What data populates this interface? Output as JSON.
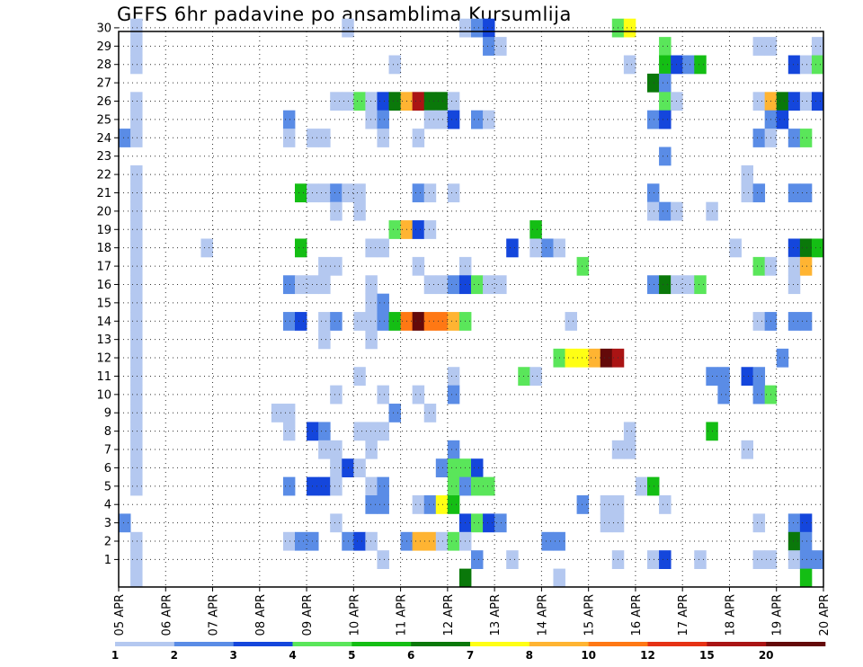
{
  "chart_data": {
    "type": "heatmap",
    "title": "GEFS 6hr padavine po ansamblima Kursumlija",
    "xlabel": "",
    "ylabel": "",
    "x_ticks": [
      "05 APR",
      "06 APR",
      "07 APR",
      "08 APR",
      "09 APR",
      "10 APR",
      "11 APR",
      "12 APR",
      "13 APR",
      "14 APR",
      "15 APR",
      "16 APR",
      "17 APR",
      "18 APR",
      "19 APR",
      "20 APR"
    ],
    "y_ticks": [
      "1",
      "2",
      "3",
      "4",
      "5",
      "6",
      "7",
      "8",
      "9",
      "10",
      "11",
      "12",
      "13",
      "14",
      "15",
      "16",
      "17",
      "18",
      "19",
      "20",
      "21",
      "22",
      "23",
      "24",
      "25",
      "26",
      "27",
      "28",
      "29",
      "30"
    ],
    "xlim": [
      0,
      60
    ],
    "ylim": [
      0,
      30
    ],
    "grid": true,
    "colorbar": {
      "labels": [
        "1",
        "2",
        "3",
        "4",
        "5",
        "6",
        "7",
        "8",
        "10",
        "12",
        "15",
        "20"
      ],
      "colors": [
        "#b4c8f0",
        "#5a8ce6",
        "#1446dc",
        "#5ae65a",
        "#14be14",
        "#0a780a",
        "#ffff14",
        "#ffb432",
        "#ff7814",
        "#e63214",
        "#aa1414",
        "#640a0a"
      ]
    },
    "cells": [
      [
        30,
        1,
        1
      ],
      [
        30,
        19,
        1
      ],
      [
        30,
        29,
        1
      ],
      [
        30,
        30,
        2
      ],
      [
        30,
        31,
        3
      ],
      [
        30,
        42,
        4
      ],
      [
        30,
        43,
        7
      ],
      [
        29,
        1,
        1
      ],
      [
        29,
        31,
        2
      ],
      [
        29,
        32,
        1
      ],
      [
        29,
        46,
        4
      ],
      [
        29,
        54,
        1
      ],
      [
        29,
        55,
        1
      ],
      [
        29,
        59,
        1
      ],
      [
        28,
        1,
        1
      ],
      [
        28,
        23,
        1
      ],
      [
        28,
        43,
        1
      ],
      [
        28,
        46,
        5
      ],
      [
        28,
        47,
        3
      ],
      [
        28,
        48,
        2
      ],
      [
        28,
        49,
        5
      ],
      [
        28,
        57,
        3
      ],
      [
        28,
        58,
        1
      ],
      [
        28,
        59,
        4
      ],
      [
        27,
        45,
        6
      ],
      [
        27,
        46,
        2
      ],
      [
        26,
        1,
        1
      ],
      [
        26,
        18,
        1
      ],
      [
        26,
        19,
        1
      ],
      [
        26,
        20,
        4
      ],
      [
        26,
        21,
        1
      ],
      [
        26,
        22,
        3
      ],
      [
        26,
        23,
        6
      ],
      [
        26,
        24,
        8
      ],
      [
        26,
        25,
        11
      ],
      [
        26,
        26,
        6
      ],
      [
        26,
        27,
        6
      ],
      [
        26,
        28,
        1
      ],
      [
        26,
        46,
        4
      ],
      [
        26,
        47,
        1
      ],
      [
        26,
        54,
        1
      ],
      [
        26,
        55,
        8
      ],
      [
        26,
        56,
        6
      ],
      [
        26,
        57,
        3
      ],
      [
        26,
        58,
        1
      ],
      [
        26,
        59,
        3
      ],
      [
        25,
        1,
        1
      ],
      [
        25,
        14,
        2
      ],
      [
        25,
        21,
        1
      ],
      [
        25,
        22,
        2
      ],
      [
        25,
        26,
        1
      ],
      [
        25,
        27,
        1
      ],
      [
        25,
        28,
        3
      ],
      [
        25,
        30,
        2
      ],
      [
        25,
        31,
        1
      ],
      [
        25,
        45,
        2
      ],
      [
        25,
        46,
        3
      ],
      [
        25,
        55,
        2
      ],
      [
        25,
        56,
        3
      ],
      [
        24,
        0,
        2
      ],
      [
        24,
        1,
        1
      ],
      [
        24,
        14,
        1
      ],
      [
        24,
        16,
        1
      ],
      [
        24,
        17,
        1
      ],
      [
        24,
        22,
        1
      ],
      [
        24,
        25,
        1
      ],
      [
        24,
        54,
        2
      ],
      [
        24,
        55,
        1
      ],
      [
        24,
        57,
        2
      ],
      [
        24,
        58,
        4
      ],
      [
        23,
        46,
        2
      ],
      [
        22,
        1,
        1
      ],
      [
        22,
        53,
        1
      ],
      [
        21,
        1,
        1
      ],
      [
        21,
        15,
        5
      ],
      [
        21,
        16,
        1
      ],
      [
        21,
        17,
        1
      ],
      [
        21,
        18,
        2
      ],
      [
        21,
        19,
        1
      ],
      [
        21,
        20,
        1
      ],
      [
        21,
        25,
        2
      ],
      [
        21,
        26,
        1
      ],
      [
        21,
        28,
        1
      ],
      [
        21,
        45,
        2
      ],
      [
        21,
        53,
        1
      ],
      [
        21,
        54,
        2
      ],
      [
        21,
        57,
        2
      ],
      [
        21,
        58,
        2
      ],
      [
        20,
        1,
        1
      ],
      [
        20,
        18,
        1
      ],
      [
        20,
        20,
        1
      ],
      [
        20,
        45,
        1
      ],
      [
        20,
        46,
        2
      ],
      [
        20,
        47,
        1
      ],
      [
        20,
        50,
        1
      ],
      [
        19,
        1,
        1
      ],
      [
        19,
        23,
        4
      ],
      [
        19,
        24,
        8
      ],
      [
        19,
        25,
        3
      ],
      [
        19,
        26,
        1
      ],
      [
        19,
        35,
        5
      ],
      [
        18,
        1,
        1
      ],
      [
        18,
        7,
        1
      ],
      [
        18,
        15,
        5
      ],
      [
        18,
        21,
        1
      ],
      [
        18,
        22,
        1
      ],
      [
        18,
        33,
        3
      ],
      [
        18,
        35,
        1
      ],
      [
        18,
        36,
        2
      ],
      [
        18,
        37,
        1
      ],
      [
        18,
        52,
        1
      ],
      [
        18,
        57,
        3
      ],
      [
        18,
        58,
        6
      ],
      [
        18,
        59,
        5
      ],
      [
        17,
        1,
        1
      ],
      [
        17,
        17,
        1
      ],
      [
        17,
        18,
        1
      ],
      [
        17,
        25,
        1
      ],
      [
        17,
        29,
        1
      ],
      [
        17,
        39,
        4
      ],
      [
        17,
        54,
        4
      ],
      [
        17,
        55,
        1
      ],
      [
        17,
        57,
        1
      ],
      [
        17,
        58,
        8
      ],
      [
        16,
        1,
        1
      ],
      [
        16,
        14,
        2
      ],
      [
        16,
        15,
        1
      ],
      [
        16,
        16,
        1
      ],
      [
        16,
        17,
        1
      ],
      [
        16,
        21,
        1
      ],
      [
        16,
        26,
        1
      ],
      [
        16,
        27,
        1
      ],
      [
        16,
        28,
        2
      ],
      [
        16,
        29,
        3
      ],
      [
        16,
        30,
        4
      ],
      [
        16,
        31,
        1
      ],
      [
        16,
        32,
        1
      ],
      [
        16,
        45,
        2
      ],
      [
        16,
        46,
        6
      ],
      [
        16,
        47,
        1
      ],
      [
        16,
        48,
        1
      ],
      [
        16,
        49,
        4
      ],
      [
        16,
        57,
        1
      ],
      [
        15,
        1,
        1
      ],
      [
        15,
        21,
        1
      ],
      [
        15,
        22,
        2
      ],
      [
        14,
        1,
        1
      ],
      [
        14,
        14,
        2
      ],
      [
        14,
        15,
        3
      ],
      [
        14,
        17,
        1
      ],
      [
        14,
        18,
        2
      ],
      [
        14,
        20,
        1
      ],
      [
        14,
        21,
        1
      ],
      [
        14,
        22,
        2
      ],
      [
        14,
        23,
        5
      ],
      [
        14,
        24,
        9
      ],
      [
        14,
        25,
        12
      ],
      [
        14,
        26,
        9
      ],
      [
        14,
        27,
        9
      ],
      [
        14,
        28,
        8
      ],
      [
        14,
        29,
        4
      ],
      [
        14,
        38,
        1
      ],
      [
        14,
        54,
        1
      ],
      [
        14,
        55,
        2
      ],
      [
        14,
        57,
        2
      ],
      [
        14,
        58,
        2
      ],
      [
        13,
        1,
        1
      ],
      [
        13,
        17,
        1
      ],
      [
        13,
        21,
        1
      ],
      [
        12,
        1,
        1
      ],
      [
        12,
        37,
        4
      ],
      [
        12,
        38,
        7
      ],
      [
        12,
        39,
        7
      ],
      [
        12,
        40,
        8
      ],
      [
        12,
        41,
        12
      ],
      [
        12,
        42,
        11
      ],
      [
        12,
        56,
        2
      ],
      [
        11,
        1,
        1
      ],
      [
        11,
        20,
        1
      ],
      [
        11,
        28,
        1
      ],
      [
        11,
        34,
        4
      ],
      [
        11,
        35,
        1
      ],
      [
        11,
        50,
        2
      ],
      [
        11,
        51,
        2
      ],
      [
        11,
        53,
        3
      ],
      [
        11,
        54,
        2
      ],
      [
        10,
        1,
        1
      ],
      [
        10,
        18,
        1
      ],
      [
        10,
        22,
        1
      ],
      [
        10,
        25,
        1
      ],
      [
        10,
        28,
        2
      ],
      [
        10,
        51,
        2
      ],
      [
        10,
        54,
        2
      ],
      [
        10,
        55,
        4
      ],
      [
        9,
        1,
        1
      ],
      [
        9,
        13,
        1
      ],
      [
        9,
        14,
        1
      ],
      [
        9,
        23,
        2
      ],
      [
        9,
        26,
        1
      ],
      [
        8,
        1,
        1
      ],
      [
        8,
        14,
        1
      ],
      [
        8,
        16,
        3
      ],
      [
        8,
        17,
        2
      ],
      [
        8,
        20,
        1
      ],
      [
        8,
        21,
        1
      ],
      [
        8,
        22,
        1
      ],
      [
        8,
        43,
        1
      ],
      [
        8,
        50,
        5
      ],
      [
        7,
        1,
        1
      ],
      [
        7,
        17,
        1
      ],
      [
        7,
        18,
        1
      ],
      [
        7,
        21,
        1
      ],
      [
        7,
        28,
        2
      ],
      [
        7,
        42,
        1
      ],
      [
        7,
        43,
        1
      ],
      [
        7,
        53,
        1
      ],
      [
        6,
        1,
        1
      ],
      [
        6,
        18,
        1
      ],
      [
        6,
        19,
        3
      ],
      [
        6,
        20,
        1
      ],
      [
        6,
        27,
        2
      ],
      [
        6,
        28,
        4
      ],
      [
        6,
        29,
        4
      ],
      [
        6,
        30,
        3
      ],
      [
        5,
        1,
        1
      ],
      [
        5,
        14,
        2
      ],
      [
        5,
        16,
        3
      ],
      [
        5,
        17,
        3
      ],
      [
        5,
        18,
        1
      ],
      [
        5,
        21,
        1
      ],
      [
        5,
        22,
        2
      ],
      [
        5,
        28,
        4
      ],
      [
        5,
        29,
        2
      ],
      [
        5,
        30,
        4
      ],
      [
        5,
        31,
        4
      ],
      [
        5,
        44,
        1
      ],
      [
        5,
        45,
        5
      ],
      [
        4,
        21,
        2
      ],
      [
        4,
        22,
        2
      ],
      [
        4,
        25,
        1
      ],
      [
        4,
        26,
        2
      ],
      [
        4,
        27,
        7
      ],
      [
        4,
        28,
        5
      ],
      [
        4,
        39,
        2
      ],
      [
        4,
        41,
        1
      ],
      [
        4,
        42,
        1
      ],
      [
        4,
        46,
        1
      ],
      [
        3,
        0,
        2
      ],
      [
        3,
        18,
        1
      ],
      [
        3,
        29,
        3
      ],
      [
        3,
        30,
        4
      ],
      [
        3,
        31,
        3
      ],
      [
        3,
        32,
        2
      ],
      [
        3,
        41,
        1
      ],
      [
        3,
        42,
        1
      ],
      [
        3,
        54,
        1
      ],
      [
        3,
        57,
        2
      ],
      [
        3,
        58,
        3
      ],
      [
        2,
        1,
        1
      ],
      [
        2,
        14,
        1
      ],
      [
        2,
        15,
        2
      ],
      [
        2,
        16,
        2
      ],
      [
        2,
        19,
        2
      ],
      [
        2,
        20,
        3
      ],
      [
        2,
        21,
        1
      ],
      [
        2,
        24,
        2
      ],
      [
        2,
        25,
        8
      ],
      [
        2,
        26,
        8
      ],
      [
        2,
        27,
        1
      ],
      [
        2,
        28,
        4
      ],
      [
        2,
        29,
        1
      ],
      [
        2,
        36,
        2
      ],
      [
        2,
        37,
        2
      ],
      [
        2,
        57,
        6
      ],
      [
        2,
        58,
        2
      ],
      [
        1,
        1,
        1
      ],
      [
        1,
        22,
        1
      ],
      [
        1,
        30,
        2
      ],
      [
        1,
        33,
        1
      ],
      [
        1,
        42,
        1
      ],
      [
        1,
        45,
        1
      ],
      [
        1,
        46,
        3
      ],
      [
        1,
        49,
        1
      ],
      [
        1,
        54,
        1
      ],
      [
        1,
        55,
        1
      ],
      [
        1,
        57,
        1
      ],
      [
        1,
        58,
        2
      ],
      [
        1,
        59,
        2
      ],
      [
        0,
        1,
        1
      ],
      [
        0,
        37,
        1
      ],
      [
        0,
        29,
        6
      ],
      [
        0,
        58,
        5
      ]
    ]
  }
}
